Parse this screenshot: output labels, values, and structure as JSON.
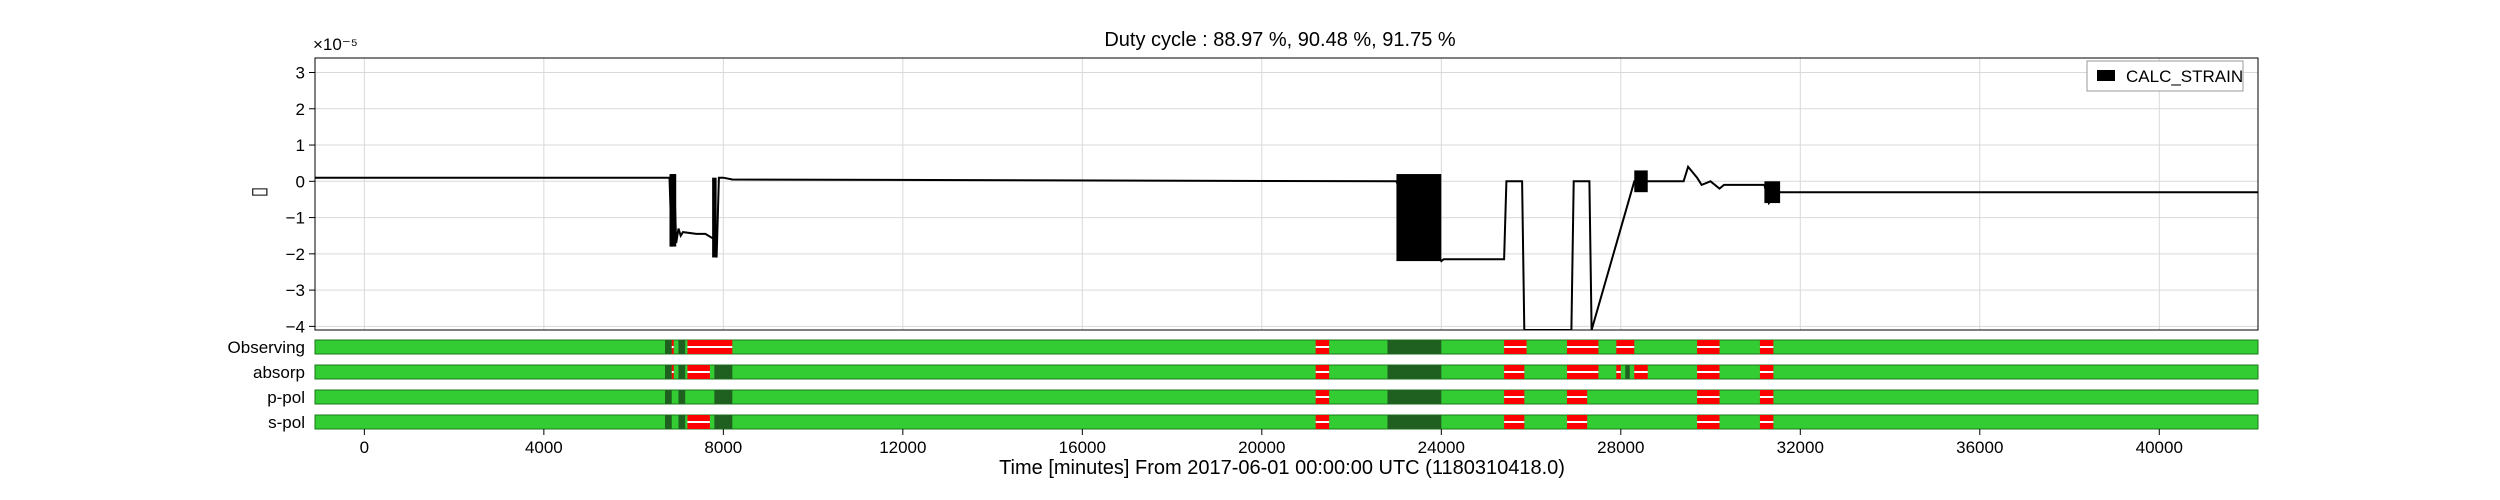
{
  "chart_data": [
    {
      "type": "line",
      "title": "Duty cycle : 88.97 %, 90.48 %, 91.75 %",
      "ylabel": "▯",
      "exponent_label": "×10⁻⁵",
      "xlim": [
        -1100,
        42200
      ],
      "ylim": [
        -4.1,
        3.4
      ],
      "y_ticks": [
        3,
        2,
        1,
        0,
        -1,
        -2,
        -3,
        -4
      ],
      "y_tick_labels": [
        "3",
        "2",
        "1",
        "0",
        "−1",
        "−2",
        "−3",
        "−4"
      ],
      "grid": true,
      "legend": {
        "position": "top-right",
        "entries": [
          "CALC_STRAIN"
        ]
      },
      "series": [
        {
          "name": "CALC_STRAIN",
          "color": "#000000",
          "x": [
            -1100,
            6800,
            6850,
            6900,
            6950,
            7000,
            7050,
            7100,
            7400,
            7600,
            7800,
            7850,
            7900,
            8000,
            8200,
            23000,
            23100,
            23500,
            24000,
            24050,
            25400,
            25450,
            25800,
            25850,
            25850,
            26900,
            26950,
            27300,
            27350,
            27350,
            28300,
            28400,
            28600,
            29400,
            29500,
            29700,
            29800,
            30000,
            30200,
            30300,
            31200,
            31300,
            31500,
            31600,
            33000,
            42200
          ],
          "y": [
            0.1,
            0.1,
            -1.8,
            0.2,
            -1.7,
            -1.3,
            -1.5,
            -1.4,
            -1.45,
            -1.45,
            -1.6,
            -2.1,
            0.1,
            0.1,
            0.05,
            0.0,
            -0.3,
            -1.0,
            -2.2,
            -2.15,
            -2.15,
            0.0,
            0.0,
            -4.1,
            -4.1,
            -4.1,
            0.0,
            0.0,
            -4.1,
            -4.1,
            0.0,
            0.0,
            0.0,
            0.0,
            0.4,
            0.1,
            -0.1,
            0.0,
            -0.2,
            -0.1,
            -0.1,
            -0.6,
            -0.3,
            -0.3,
            -0.3,
            -0.3
          ]
        }
      ],
      "shaded_bands": [
        {
          "x_range": [
            6800,
            6950
          ],
          "y_range": [
            -1.8,
            0.2
          ]
        },
        {
          "x_range": [
            7750,
            7850
          ],
          "y_range": [
            -2.1,
            0.1
          ]
        },
        {
          "x_range": [
            23000,
            24000
          ],
          "y_range": [
            -2.2,
            0.2
          ]
        },
        {
          "x_range": [
            28300,
            28600
          ],
          "y_range": [
            -0.3,
            0.3
          ]
        },
        {
          "x_range": [
            31200,
            31550
          ],
          "y_range": [
            -0.6,
            0.0
          ]
        }
      ]
    },
    {
      "type": "timeline",
      "xlabel": "Time [minutes] From 2017-06-01 00:00:00 UTC (1180310418.0)",
      "x_ticks": [
        0,
        4000,
        8000,
        12000,
        16000,
        20000,
        24000,
        28000,
        32000,
        36000,
        40000
      ],
      "x_tick_labels": [
        "0",
        "4000",
        "8000",
        "12000",
        "16000",
        "20000",
        "24000",
        "28000",
        "32000",
        "36000",
        "40000"
      ],
      "colors": {
        "on": "#33cc33",
        "off": "#ff0000",
        "dark": "#1f5f1f"
      },
      "rows": [
        {
          "label": "Observing",
          "off": [
            [
              6850,
              6880
            ],
            [
              7200,
              8200
            ],
            [
              21200,
              21500
            ],
            [
              25400,
              25900
            ],
            [
              26800,
              27500
            ],
            [
              27900,
              28300
            ],
            [
              29700,
              30200
            ],
            [
              31100,
              31400
            ]
          ],
          "dark": [
            [
              6700,
              6850
            ],
            [
              7000,
              7150
            ],
            [
              22800,
              24000
            ],
            [
              28100,
              28200
            ]
          ]
        },
        {
          "label": "absorp",
          "off": [
            [
              6850,
              6880
            ],
            [
              7200,
              7700
            ],
            [
              21200,
              21500
            ],
            [
              25400,
              25850
            ],
            [
              26800,
              27500
            ],
            [
              27900,
              28000
            ],
            [
              28300,
              28600
            ],
            [
              29700,
              30200
            ],
            [
              31100,
              31400
            ]
          ],
          "dark": [
            [
              6700,
              6850
            ],
            [
              7000,
              7150
            ],
            [
              7800,
              8200
            ],
            [
              22800,
              24000
            ],
            [
              28100,
              28200
            ]
          ]
        },
        {
          "label": "p-pol",
          "off": [
            [
              21200,
              21500
            ],
            [
              25400,
              25850
            ],
            [
              26800,
              27250
            ],
            [
              29700,
              30200
            ],
            [
              31100,
              31400
            ]
          ],
          "dark": [
            [
              6700,
              6850
            ],
            [
              7000,
              7150
            ],
            [
              7800,
              8200
            ],
            [
              22800,
              24000
            ]
          ]
        },
        {
          "label": "s-pol",
          "off": [
            [
              7200,
              7700
            ],
            [
              21200,
              21500
            ],
            [
              25400,
              25850
            ],
            [
              26800,
              27250
            ],
            [
              29700,
              30200
            ],
            [
              31100,
              31400
            ]
          ],
          "dark": [
            [
              6700,
              6850
            ],
            [
              7000,
              7150
            ],
            [
              7800,
              8200
            ],
            [
              22800,
              24000
            ]
          ]
        }
      ]
    }
  ]
}
